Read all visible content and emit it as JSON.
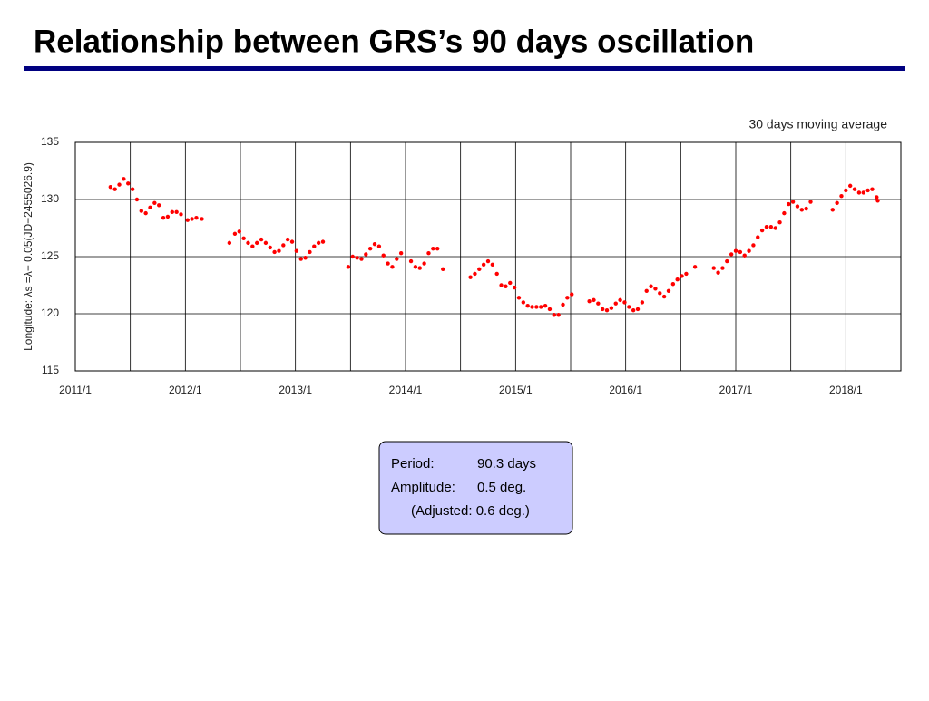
{
  "chart_data": {
    "type": "scatter",
    "title": "Relationship between GRS’s 90 days oscillation",
    "y_label": "Longitude: λs =λ+ 0.05(JD−2455026.9)",
    "annotation": "30 days moving average",
    "xlim": [
      2011,
      2018.5
    ],
    "xticks": [
      {
        "value": 2011,
        "label": "2011/1"
      },
      {
        "value": 2012,
        "label": "2012/1"
      },
      {
        "value": 2013,
        "label": "2013/1"
      },
      {
        "value": 2014,
        "label": "2014/1"
      },
      {
        "value": 2015,
        "label": "2015/1"
      },
      {
        "value": 2016,
        "label": "2016/1"
      },
      {
        "value": 2017,
        "label": "2017/1"
      },
      {
        "value": 2018,
        "label": "2018/1"
      }
    ],
    "xminor": [
      2011.5,
      2012.5,
      2013.5,
      2014.5,
      2015.5,
      2016.5,
      2017.5
    ],
    "ylim": [
      115,
      135
    ],
    "yticks": [
      115,
      120,
      125,
      130,
      135
    ],
    "grid": true,
    "x": [
      2011.32,
      2011.36,
      2011.4,
      2011.44,
      2011.48,
      2011.52,
      2011.56,
      2011.6,
      2011.64,
      2011.68,
      2011.72,
      2011.76,
      2011.8,
      2011.84,
      2011.88,
      2011.92,
      2011.96,
      2012.02,
      2012.06,
      2012.1,
      2012.15,
      2012.4,
      2012.45,
      2012.49,
      2012.53,
      2012.57,
      2012.61,
      2012.65,
      2012.69,
      2012.73,
      2012.77,
      2012.81,
      2012.85,
      2012.89,
      2012.93,
      2012.97,
      2013.01,
      2013.05,
      2013.09,
      2013.13,
      2013.17,
      2013.21,
      2013.25,
      2013.48,
      2013.52,
      2013.56,
      2013.6,
      2013.64,
      2013.68,
      2013.72,
      2013.76,
      2013.8,
      2013.84,
      2013.88,
      2013.92,
      2013.96,
      2014.05,
      2014.09,
      2014.13,
      2014.17,
      2014.21,
      2014.25,
      2014.29,
      2014.34,
      2014.59,
      2014.63,
      2014.67,
      2014.71,
      2014.75,
      2014.79,
      2014.83,
      2014.87,
      2014.91,
      2014.95,
      2014.99,
      2015.03,
      2015.07,
      2015.11,
      2015.15,
      2015.19,
      2015.23,
      2015.27,
      2015.31,
      2015.35,
      2015.39,
      2015.43,
      2015.47,
      2015.51,
      2015.67,
      2015.71,
      2015.75,
      2015.79,
      2015.83,
      2015.87,
      2015.91,
      2015.95,
      2015.99,
      2016.03,
      2016.07,
      2016.11,
      2016.15,
      2016.19,
      2016.23,
      2016.27,
      2016.31,
      2016.35,
      2016.39,
      2016.43,
      2016.47,
      2016.51,
      2016.55,
      2016.63,
      2016.8,
      2016.84,
      2016.88,
      2016.92,
      2016.96,
      2017.0,
      2017.04,
      2017.08,
      2017.12,
      2017.16,
      2017.2,
      2017.24,
      2017.28,
      2017.32,
      2017.36,
      2017.4,
      2017.44,
      2017.48,
      2017.52,
      2017.56,
      2017.6,
      2017.64,
      2017.68,
      2017.88,
      2017.92,
      2017.96,
      2018.0,
      2018.04,
      2018.08,
      2018.12,
      2018.16,
      2018.2,
      2018.24,
      2018.28,
      2018.29
    ],
    "series": [
      {
        "color": "#ff0000",
        "values": [
          131.1,
          130.9,
          131.3,
          131.8,
          131.4,
          130.9,
          130.0,
          129.0,
          128.8,
          129.3,
          129.7,
          129.5,
          128.4,
          128.5,
          128.9,
          128.9,
          128.7,
          128.2,
          128.3,
          128.4,
          128.3,
          126.2,
          127.0,
          127.2,
          126.6,
          126.2,
          125.9,
          126.2,
          126.5,
          126.2,
          125.8,
          125.4,
          125.5,
          126.0,
          126.5,
          126.3,
          125.5,
          124.8,
          124.9,
          125.4,
          125.9,
          126.2,
          126.3,
          124.1,
          125.0,
          124.9,
          124.8,
          125.2,
          125.7,
          126.1,
          125.9,
          125.1,
          124.4,
          124.1,
          124.8,
          125.3,
          124.6,
          124.1,
          124.0,
          124.4,
          125.3,
          125.7,
          125.7,
          123.9,
          123.2,
          123.5,
          123.9,
          124.3,
          124.6,
          124.3,
          123.5,
          122.5,
          122.4,
          122.7,
          122.3,
          121.4,
          121.0,
          120.7,
          120.6,
          120.6,
          120.6,
          120.7,
          120.4,
          119.9,
          119.9,
          120.8,
          121.4,
          121.7,
          121.1,
          121.2,
          120.9,
          120.4,
          120.3,
          120.5,
          120.9,
          121.2,
          121.0,
          120.6,
          120.3,
          120.4,
          121.0,
          122.0,
          122.4,
          122.2,
          121.8,
          121.5,
          122.0,
          122.6,
          123.0,
          123.3,
          123.5,
          124.1,
          124.0,
          123.6,
          124.0,
          124.6,
          125.2,
          125.5,
          125.4,
          125.1,
          125.5,
          126.0,
          126.7,
          127.3,
          127.6,
          127.6,
          127.5,
          128.0,
          128.8,
          129.6,
          129.8,
          129.4,
          129.1,
          129.2,
          129.8,
          129.1,
          129.7,
          130.3,
          130.8,
          131.2,
          130.9,
          130.6,
          130.6,
          130.8,
          130.9,
          130.2,
          129.9
        ]
      }
    ]
  },
  "info_box": {
    "rows": [
      [
        "Period:",
        "90.3 days"
      ],
      [
        "Amplitude:",
        "0.5 deg."
      ]
    ],
    "note": "(Adjusted: 0.6 deg.)"
  }
}
